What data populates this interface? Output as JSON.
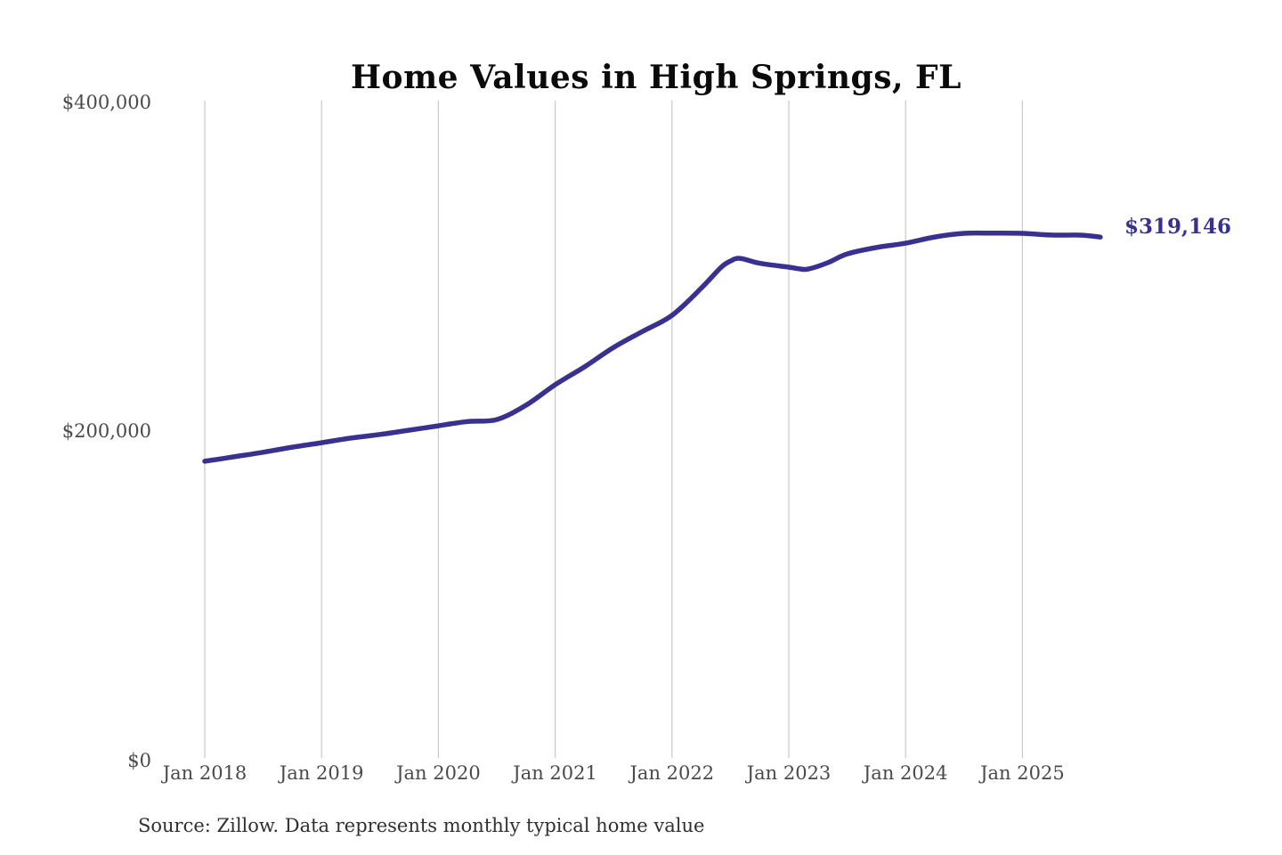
{
  "page": {
    "background_color": "#ffffff"
  },
  "header": {
    "title": "Home Values in High Springs, FL"
  },
  "annotation": {
    "latest_value_label": "$319,146"
  },
  "footer": {
    "source_note": "Source: Zillow. Data represents monthly typical home value"
  },
  "chart_data": {
    "type": "line",
    "title": "Home Values in High Springs, FL",
    "series_name": "Monthly typical home value",
    "unit": "USD",
    "line_color": "#39318f",
    "gridline_color": "#cccccc",
    "tick_label_color": "#4a4a4a",
    "grid": "vertical-yearly-only",
    "legend": "none",
    "ylim": [
      0,
      400000
    ],
    "xlim_years": [
      2018.0,
      2025.75
    ],
    "y_ticks": [
      {
        "label": "$0",
        "value": 0
      },
      {
        "label": "$200,000",
        "value": 200000
      },
      {
        "label": "$400,000",
        "value": 400000
      }
    ],
    "x_ticks": [
      {
        "label": "Jan 2018",
        "year": 2018
      },
      {
        "label": "Jan 2019",
        "year": 2019
      },
      {
        "label": "Jan 2020",
        "year": 2020
      },
      {
        "label": "Jan 2021",
        "year": 2021
      },
      {
        "label": "Jan 2022",
        "year": 2022
      },
      {
        "label": "Jan 2023",
        "year": 2023
      },
      {
        "label": "Jan 2024",
        "year": 2024
      },
      {
        "label": "Jan 2025",
        "year": 2025
      }
    ],
    "latest_label": "$319,146",
    "latest_value": 319146,
    "points": [
      [
        "2018-01",
        182700
      ],
      [
        "2018-04",
        185400
      ],
      [
        "2018-07",
        188200
      ],
      [
        "2018-10",
        191300
      ],
      [
        "2019-01",
        194000
      ],
      [
        "2019-04",
        196800
      ],
      [
        "2019-07",
        199000
      ],
      [
        "2019-10",
        201600
      ],
      [
        "2020-01",
        204300
      ],
      [
        "2020-04",
        206900
      ],
      [
        "2020-07",
        208100
      ],
      [
        "2020-10",
        216800
      ],
      [
        "2021-01",
        229300
      ],
      [
        "2021-04",
        240100
      ],
      [
        "2021-07",
        252000
      ],
      [
        "2021-10",
        261800
      ],
      [
        "2022-01",
        271500
      ],
      [
        "2022-04",
        288000
      ],
      [
        "2022-06",
        300500
      ],
      [
        "2022-07",
        304500
      ],
      [
        "2022-08",
        306200
      ],
      [
        "2022-10",
        303200
      ],
      [
        "2023-01",
        300800
      ],
      [
        "2023-02",
        299900
      ],
      [
        "2023-03",
        299700
      ],
      [
        "2023-05",
        303500
      ],
      [
        "2023-07",
        308900
      ],
      [
        "2023-10",
        312800
      ],
      [
        "2024-01",
        315400
      ],
      [
        "2024-04",
        319200
      ],
      [
        "2024-07",
        321400
      ],
      [
        "2024-10",
        321500
      ],
      [
        "2025-01",
        321400
      ],
      [
        "2025-04",
        320400
      ],
      [
        "2025-07",
        320300
      ],
      [
        "2025-09",
        319146
      ]
    ]
  }
}
